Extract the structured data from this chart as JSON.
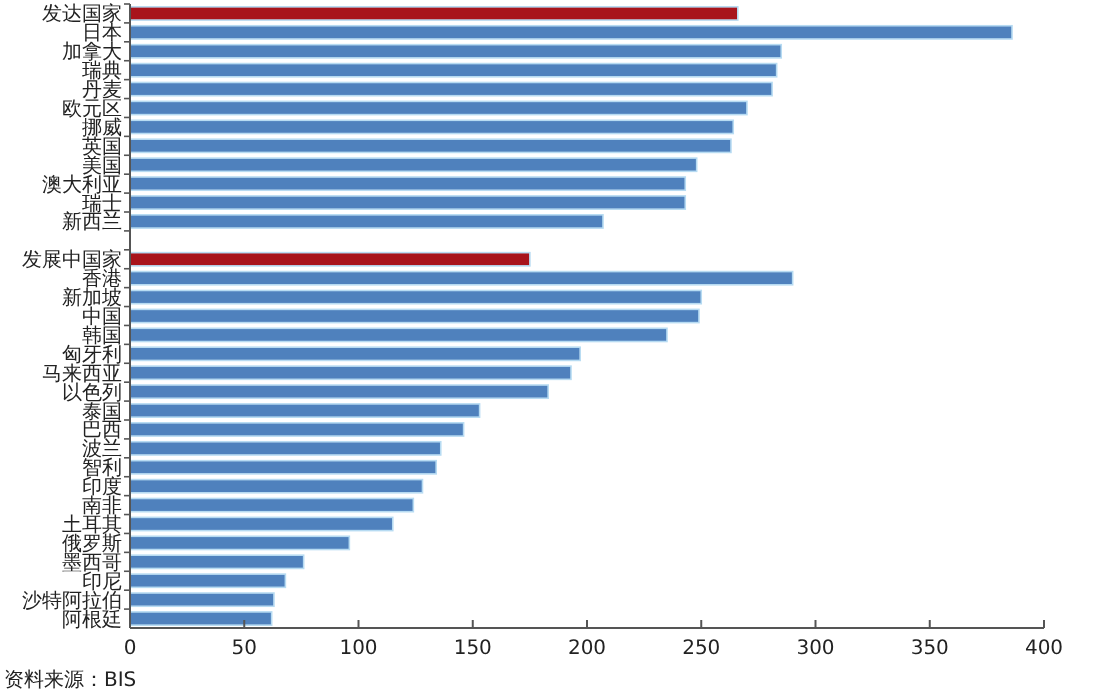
{
  "chart_data": {
    "type": "bar",
    "orientation": "horizontal",
    "categories": [
      "发达国家",
      "日本",
      "加拿大",
      "瑞典",
      "丹麦",
      "欧元区",
      "挪威",
      "英国",
      "美国",
      "澳大利亚",
      "瑞士",
      "新西兰",
      null,
      "发展中国家",
      "香港",
      "新加坡",
      "中国",
      "韩国",
      "匈牙利",
      "马来西亚",
      "以色列",
      "泰国",
      "巴西",
      "波兰",
      "智利",
      "印度",
      "南非",
      "土耳其",
      "俄罗斯",
      "墨西哥",
      "印尼",
      "沙特阿拉伯",
      "阿根廷"
    ],
    "values": [
      266,
      386,
      285,
      283,
      281,
      270,
      264,
      263,
      248,
      243,
      243,
      207,
      null,
      175,
      290,
      250,
      249,
      235,
      197,
      193,
      183,
      153,
      146,
      136,
      134,
      128,
      124,
      115,
      96,
      76,
      68,
      63,
      62
    ],
    "colors": [
      "#a8141c",
      "#4f81bd",
      "#4f81bd",
      "#4f81bd",
      "#4f81bd",
      "#4f81bd",
      "#4f81bd",
      "#4f81bd",
      "#4f81bd",
      "#4f81bd",
      "#4f81bd",
      "#4f81bd",
      null,
      "#a8141c",
      "#4f81bd",
      "#4f81bd",
      "#4f81bd",
      "#4f81bd",
      "#4f81bd",
      "#4f81bd",
      "#4f81bd",
      "#4f81bd",
      "#4f81bd",
      "#4f81bd",
      "#4f81bd",
      "#4f81bd",
      "#4f81bd",
      "#4f81bd",
      "#4f81bd",
      "#4f81bd",
      "#4f81bd",
      "#4f81bd",
      "#4f81bd"
    ],
    "xlim": [
      0,
      400
    ],
    "xticks": [
      0,
      50,
      100,
      150,
      200,
      250,
      300,
      350,
      400
    ],
    "annotations": [
      "资料来源：BIS"
    ]
  }
}
